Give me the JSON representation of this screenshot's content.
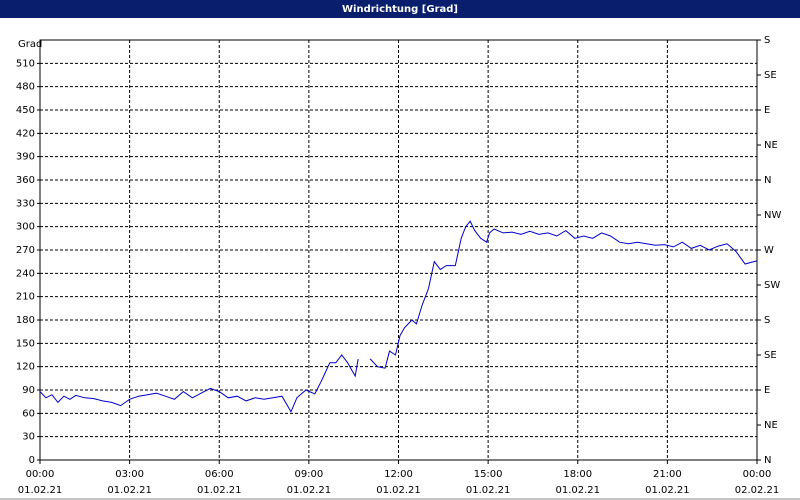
{
  "chart_data": {
    "type": "line",
    "title": "Windrichtung [Grad]",
    "ylabel": "Grad",
    "x": [
      0,
      0.2,
      0.4,
      0.6,
      0.8,
      1.0,
      1.2,
      1.5,
      1.8,
      2.1,
      2.4,
      2.7,
      3.0,
      3.3,
      3.6,
      3.9,
      4.2,
      4.5,
      4.8,
      5.1,
      5.4,
      5.7,
      6.0,
      6.3,
      6.6,
      6.9,
      7.2,
      7.5,
      7.8,
      8.1,
      8.4,
      8.6,
      8.9,
      9.2,
      9.4,
      9.7,
      9.9,
      10.1,
      10.3,
      10.4,
      10.55,
      10.65,
      10.85,
      11.05,
      11.3,
      11.55,
      11.7,
      11.9,
      12.05,
      12.2,
      12.45,
      12.6,
      12.8,
      13.0,
      13.2,
      13.4,
      13.6,
      13.9,
      14.1,
      14.25,
      14.4,
      14.55,
      14.75,
      14.95,
      15.05,
      15.2,
      15.5,
      15.8,
      16.1,
      16.4,
      16.7,
      17.0,
      17.3,
      17.6,
      17.9,
      18.2,
      18.5,
      18.8,
      19.1,
      19.4,
      19.7,
      20.0,
      20.3,
      20.6,
      20.9,
      21.2,
      21.5,
      21.8,
      22.1,
      22.4,
      22.7,
      23.0,
      23.3,
      23.6,
      23.8,
      24.0
    ],
    "series": [
      {
        "name": "Windrichtung",
        "color": "#0000c8",
        "values": [
          88,
          80,
          84,
          74,
          82,
          78,
          83,
          80,
          79,
          76,
          74,
          70,
          78,
          82,
          84,
          86,
          82,
          78,
          88,
          80,
          86,
          92,
          88,
          80,
          82,
          76,
          80,
          78,
          80,
          82,
          62,
          80,
          90,
          85,
          100,
          125,
          125,
          135,
          125,
          118,
          108,
          130,
          null,
          130,
          120,
          118,
          140,
          135,
          160,
          170,
          180,
          175,
          200,
          220,
          255,
          245,
          250,
          250,
          285,
          300,
          307,
          295,
          285,
          280,
          292,
          297,
          292,
          293,
          290,
          294,
          290,
          292,
          288,
          295,
          285,
          288,
          285,
          292,
          288,
          280,
          278,
          280,
          278,
          276,
          277,
          274,
          280,
          272,
          276,
          270,
          275,
          278,
          268,
          252,
          254,
          256
        ]
      }
    ],
    "xlim": [
      0,
      24
    ],
    "xticks": [
      {
        "value": 0,
        "label": "00:00"
      },
      {
        "value": 3,
        "label": "03:00"
      },
      {
        "value": 6,
        "label": "06:00"
      },
      {
        "value": 9,
        "label": "09:00"
      },
      {
        "value": 12,
        "label": "12:00"
      },
      {
        "value": 15,
        "label": "15:00"
      },
      {
        "value": 18,
        "label": "18:00"
      },
      {
        "value": 21,
        "label": "21:00"
      },
      {
        "value": 24,
        "label": "00:00"
      }
    ],
    "xtick_dates": [
      "01.02.21",
      "01.02.21",
      "01.02.21",
      "01.02.21",
      "01.02.21",
      "01.02.21",
      "01.02.21",
      "01.02.21",
      "02.02.21"
    ],
    "ylim": [
      0,
      540
    ],
    "yticks": [
      0,
      30,
      60,
      90,
      120,
      150,
      180,
      210,
      240,
      270,
      300,
      330,
      360,
      390,
      420,
      450,
      480,
      510
    ],
    "y2lim": [
      0,
      540
    ],
    "y2ticks": [
      {
        "value": 0,
        "label": "N"
      },
      {
        "value": 45,
        "label": "NE"
      },
      {
        "value": 90,
        "label": "E"
      },
      {
        "value": 135,
        "label": "SE"
      },
      {
        "value": 180,
        "label": "S"
      },
      {
        "value": 225,
        "label": "SW"
      },
      {
        "value": 270,
        "label": "W"
      },
      {
        "value": 315,
        "label": "NW"
      },
      {
        "value": 360,
        "label": "N"
      },
      {
        "value": 405,
        "label": "NE"
      },
      {
        "value": 450,
        "label": "E"
      },
      {
        "value": 495,
        "label": "SE"
      },
      {
        "value": 540,
        "label": "S"
      }
    ],
    "grid": true
  }
}
